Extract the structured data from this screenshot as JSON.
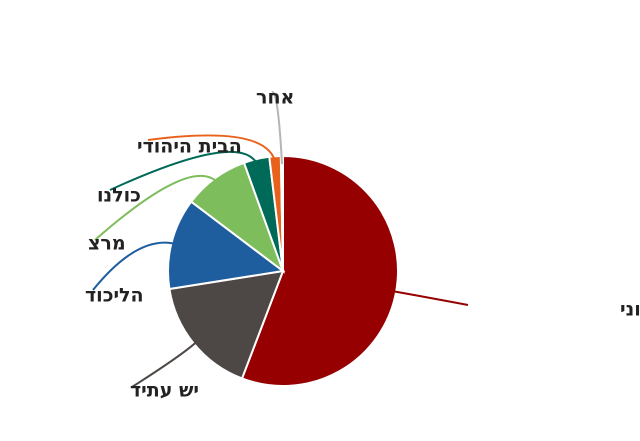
{
  "chart_data": {
    "type": "pie",
    "categories": [
      "המחנה הציוני",
      "יש עתיד",
      "הליכוד",
      "מרצ",
      "כולנו",
      "הבית היהודי",
      "אחר"
    ],
    "values": [
      55.8,
      16.7,
      12.8,
      9.2,
      3.6,
      1.6,
      0.3
    ],
    "colors": [
      "#960000",
      "#4d4845",
      "#1f5e9e",
      "#7dbd5b",
      "#006a58",
      "#e8621c",
      "#b5b5b5"
    ]
  }
}
